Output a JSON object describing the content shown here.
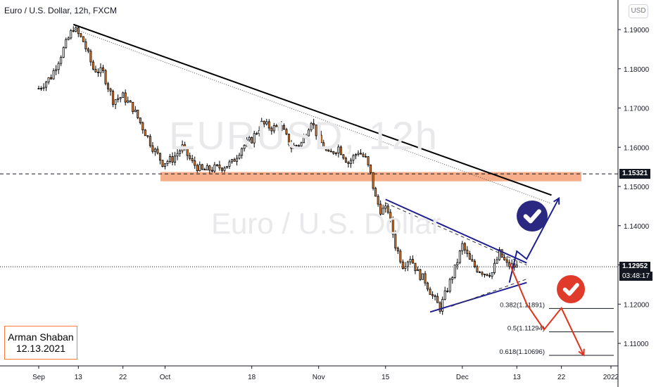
{
  "header": {
    "title": "Euro / U.S. Dollar, 12h, FXCM",
    "currency": "USD"
  },
  "watermark": {
    "symbol": "EURUSD, 12h",
    "name": "Euro / U.S. Dollar"
  },
  "author": {
    "name": "Arman Shaban",
    "date": "12.13.2021"
  },
  "price_tags": {
    "zone": "1.15321",
    "last": "1.12952",
    "countdown": "03:48:17"
  },
  "colors": {
    "bull": "#ffffff",
    "bear": "#f7862b",
    "wick": "#000000",
    "zone": "#f4a57c",
    "trend_main": "#000000",
    "wedge": "#1f1f8f",
    "arrow_up": "#1f1f8f",
    "arrow_down": "#e0331a",
    "badge_blue": "#2a2880",
    "badge_red": "#e03a2a"
  },
  "icons": [
    "check-badge-blue-icon",
    "check-badge-red-icon"
  ],
  "chart_data": {
    "type": "candlestick",
    "title": "Euro / U.S. Dollar, 12h, FXCM",
    "y_range": [
      1.1035,
      1.1935
    ],
    "y_ticks": [
      "1.19000",
      "1.18000",
      "1.17000",
      "1.16000",
      "1.15000",
      "1.14000",
      "1.13000",
      "1.12000",
      "1.11000"
    ],
    "x_ticks": [
      {
        "label": "Sep",
        "index": 0
      },
      {
        "label": "13",
        "index": 16
      },
      {
        "label": "22",
        "index": 34
      },
      {
        "label": "Oct",
        "index": 51
      },
      {
        "label": "18",
        "index": 86
      },
      {
        "label": "Nov",
        "index": 113
      },
      {
        "label": "15",
        "index": 140
      },
      {
        "label": "Dec",
        "index": 171
      },
      {
        "label": "13",
        "index": 193
      },
      {
        "label": "22",
        "index": 211
      },
      {
        "label": "2022",
        "index": 231
      }
    ],
    "index_range": [
      -10,
      236
    ],
    "anchors": [
      [
        0,
        1.175
      ],
      [
        5,
        1.178
      ],
      [
        10,
        1.185
      ],
      [
        14,
        1.1905
      ],
      [
        18,
        1.187
      ],
      [
        22,
        1.18
      ],
      [
        26,
        1.179
      ],
      [
        30,
        1.172
      ],
      [
        34,
        1.173
      ],
      [
        38,
        1.17
      ],
      [
        42,
        1.165
      ],
      [
        46,
        1.16
      ],
      [
        50,
        1.156
      ],
      [
        54,
        1.157
      ],
      [
        58,
        1.16
      ],
      [
        62,
        1.156
      ],
      [
        66,
        1.154
      ],
      [
        70,
        1.1545
      ],
      [
        74,
        1.155
      ],
      [
        78,
        1.156
      ],
      [
        82,
        1.16
      ],
      [
        86,
        1.162
      ],
      [
        90,
        1.166
      ],
      [
        94,
        1.165
      ],
      [
        98,
        1.165
      ],
      [
        102,
        1.16
      ],
      [
        106,
        1.161
      ],
      [
        110,
        1.167
      ],
      [
        113,
        1.162
      ],
      [
        117,
        1.158
      ],
      [
        121,
        1.16
      ],
      [
        125,
        1.156
      ],
      [
        129,
        1.159
      ],
      [
        132,
        1.157
      ],
      [
        134,
        1.153
      ],
      [
        136,
        1.147
      ],
      [
        138,
        1.144
      ],
      [
        141,
        1.144
      ],
      [
        144,
        1.135
      ],
      [
        147,
        1.13
      ],
      [
        150,
        1.132
      ],
      [
        153,
        1.128
      ],
      [
        156,
        1.126
      ],
      [
        159,
        1.122
      ],
      [
        162,
        1.119
      ],
      [
        165,
        1.124
      ],
      [
        168,
        1.129
      ],
      [
        171,
        1.135
      ],
      [
        174,
        1.131
      ],
      [
        177,
        1.129
      ],
      [
        180,
        1.128
      ],
      [
        183,
        1.128
      ],
      [
        186,
        1.133
      ],
      [
        189,
        1.13
      ],
      [
        193,
        1.1295
      ]
    ],
    "resistance_zone": [
      1.1515,
      1.1535
    ],
    "current_price": 1.12952,
    "zone_price": 1.15321,
    "downtrend_line": [
      [
        14,
        1.1913
      ],
      [
        207,
        1.1478
      ]
    ],
    "wedge_upper": [
      [
        140,
        1.1467
      ],
      [
        197,
        1.1305
      ]
    ],
    "wedge_lower": [
      [
        158,
        1.118
      ],
      [
        197,
        1.1255
      ]
    ],
    "fib_levels": [
      {
        "label": "0.382(1.11891)",
        "value": 1.11891
      },
      {
        "label": "0.5(1.11294)",
        "value": 1.11294
      },
      {
        "label": "0.618(1.10696)",
        "value": 1.10696
      }
    ],
    "bullish_path": [
      [
        190,
        1.1255
      ],
      [
        193,
        1.1335
      ],
      [
        197,
        1.1315
      ],
      [
        210,
        1.147
      ]
    ],
    "bearish_path": [
      [
        190,
        1.1305
      ],
      [
        197,
        1.12
      ],
      [
        204,
        1.1135
      ],
      [
        211,
        1.119
      ],
      [
        220,
        1.107
      ]
    ]
  }
}
